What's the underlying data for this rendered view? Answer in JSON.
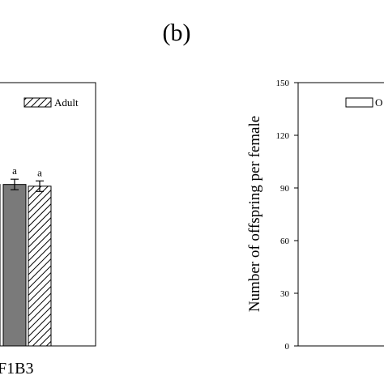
{
  "panel_label": "(b)",
  "chart_data": [
    {
      "type": "bar",
      "panel": "left",
      "categories": [
        "",
        "F1B3"
      ],
      "series": [
        {
          "name": "",
          "values": [
            null,
            92
          ],
          "errors": [
            null,
            3
          ]
        },
        {
          "name": "Adult",
          "values": [
            null,
            91
          ],
          "errors": [
            null,
            3
          ]
        }
      ],
      "annotations": [
        "a",
        "a"
      ],
      "legend": {
        "entries": [
          "Adult"
        ],
        "placement": "top-right"
      },
      "colors": {
        "solid": "#7a7a7a",
        "hatch": "#000000"
      }
    },
    {
      "type": "bar",
      "panel": "right",
      "ylabel": "Number of offspring per female",
      "ylim": [
        0,
        150
      ],
      "yticks": [
        0,
        30,
        60,
        90,
        120,
        150
      ],
      "legend": {
        "entries": [
          "O"
        ],
        "placement": "top-right"
      }
    }
  ]
}
